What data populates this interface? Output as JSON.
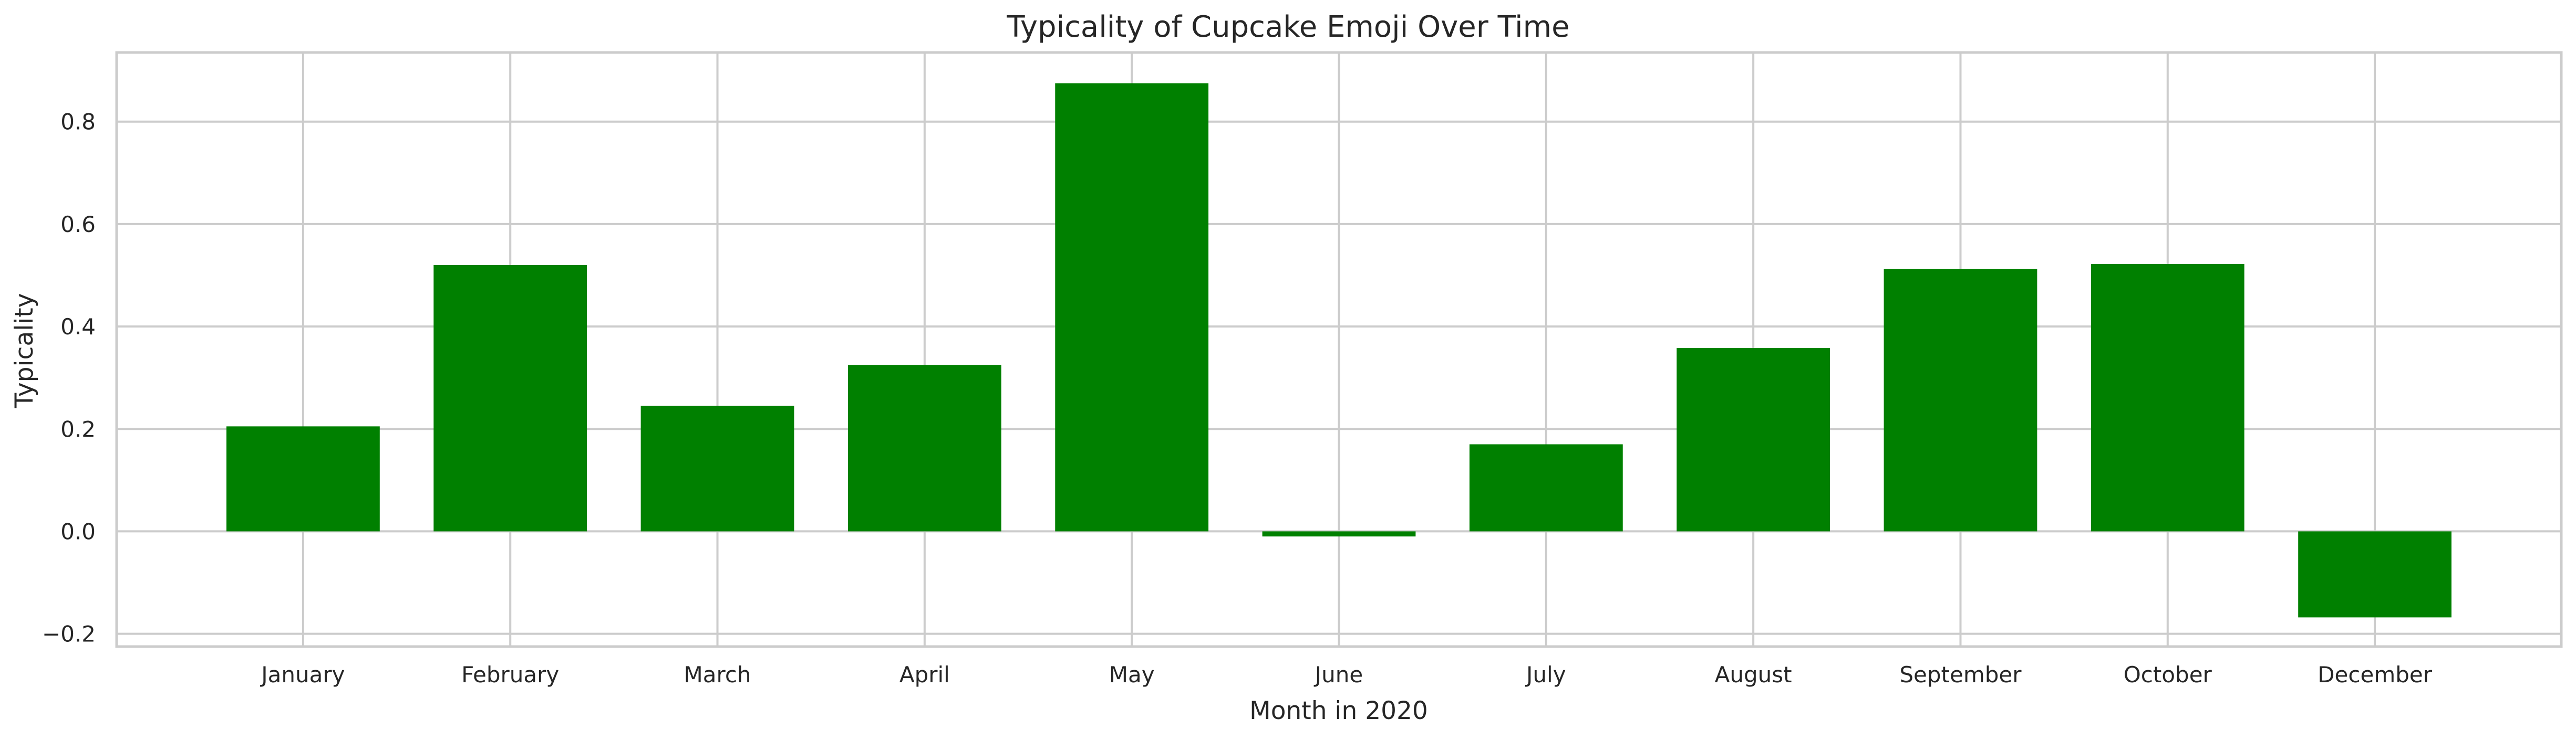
{
  "chart_data": {
    "type": "bar",
    "title": "Typicality of Cupcake Emoji Over Time",
    "xlabel": "Month in 2020",
    "ylabel": "Typicality",
    "categories": [
      "January",
      "February",
      "March",
      "April",
      "May",
      "June",
      "July",
      "August",
      "September",
      "October",
      "December"
    ],
    "values": [
      0.205,
      0.52,
      0.245,
      0.325,
      0.875,
      -0.01,
      0.17,
      0.358,
      0.512,
      0.522,
      -0.168
    ],
    "ylim": [
      -0.225,
      0.935
    ],
    "yticks": [
      -0.2,
      0.0,
      0.2,
      0.4,
      0.6,
      0.8
    ],
    "ytick_labels": [
      "−0.2",
      "0.0",
      "0.2",
      "0.4",
      "0.6",
      "0.8"
    ],
    "grid": true,
    "bar_color": "#008000",
    "grid_color": "#cccccc",
    "spine_color": "#cccccc"
  }
}
